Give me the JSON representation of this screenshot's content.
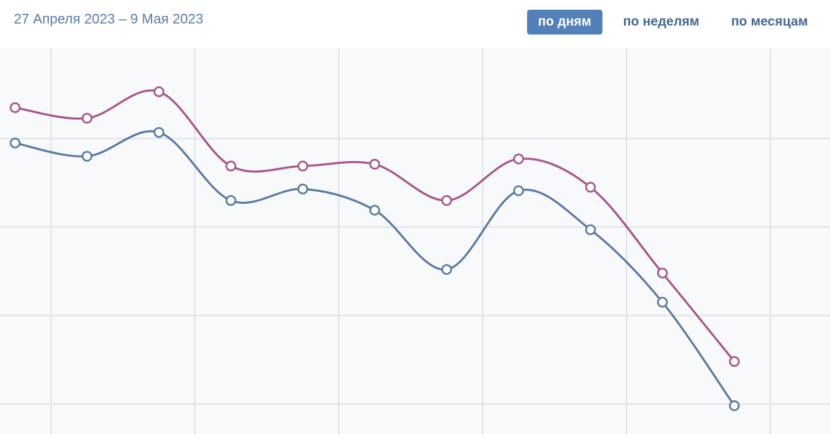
{
  "header": {
    "date_range": "27 Апреля 2023 – 9 Мая 2023",
    "tabs": [
      {
        "label": "по дням",
        "active": true
      },
      {
        "label": "по неделям",
        "active": false
      },
      {
        "label": "по месяцам",
        "active": false
      }
    ]
  },
  "chart_data": {
    "type": "line",
    "x": [
      0,
      1,
      2,
      3,
      4,
      5,
      6,
      7,
      8,
      9,
      10
    ],
    "series": [
      {
        "color": "#a5568a",
        "values": [
          4.35,
          4.23,
          4.53,
          3.69,
          3.69,
          3.71,
          3.3,
          3.77,
          3.45,
          2.48,
          1.48
        ]
      },
      {
        "color": "#5b7aa0",
        "values": [
          3.95,
          3.8,
          4.07,
          3.3,
          3.43,
          3.19,
          2.52,
          3.41,
          2.97,
          2.15,
          0.98
        ]
      }
    ],
    "xlim": [
      -0.21,
      11.33
    ],
    "ylim": [
      0.66,
      5.02
    ],
    "xticks": [
      0.5,
      2.5,
      4.5,
      6.5,
      8.5,
      10.5
    ],
    "yticks": [
      1,
      2,
      3,
      4
    ],
    "grid": true
  }
}
